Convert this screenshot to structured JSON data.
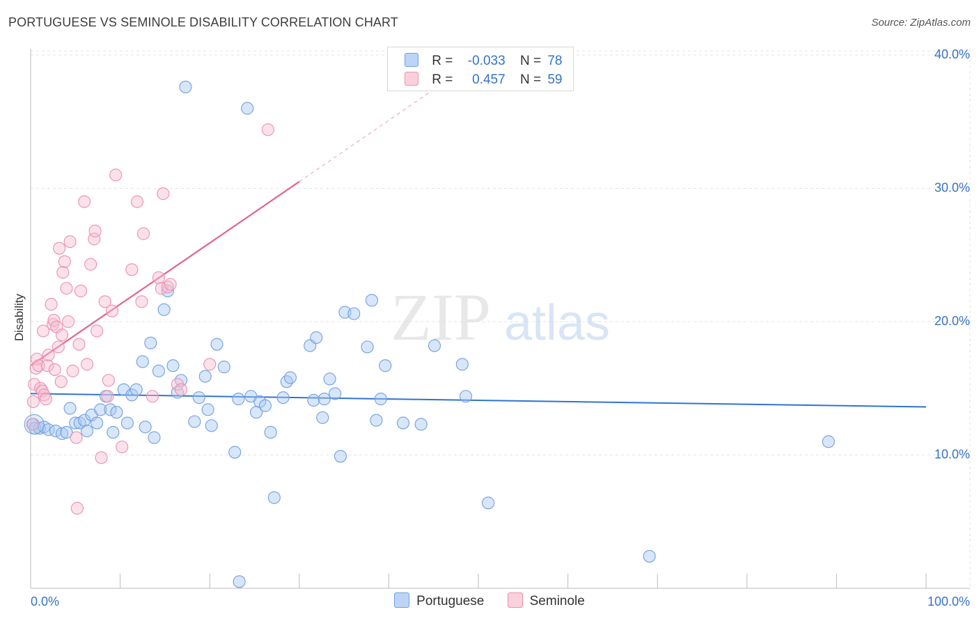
{
  "title": "PORTUGUESE VS SEMINOLE DISABILITY CORRELATION CHART",
  "source": "Source: ZipAtlas.com",
  "watermark": {
    "zip": "ZIP",
    "atlas": "atlas"
  },
  "colors": {
    "portuguese_fill": "#a9c8f2",
    "portuguese_stroke": "#6f9fe0",
    "portuguese_line": "#2f73d0",
    "seminole_fill": "#f7bfd0",
    "seminole_stroke": "#ec8fae",
    "seminole_line": "#e2628e",
    "axis_label": "#3572c9",
    "grid": "#e3e3e3"
  },
  "legend": {
    "rows": [
      {
        "series": "Portuguese",
        "r_label": "R =",
        "r_value": "-0.033",
        "n_label": "N =",
        "n_value": "78"
      },
      {
        "series": "Seminole",
        "r_label": "R =",
        "r_value": "0.457",
        "n_label": "N =",
        "n_value": "59"
      }
    ]
  },
  "chart_data": {
    "type": "scatter",
    "title": "PORTUGUESE VS SEMINOLE DISABILITY CORRELATION CHART",
    "xlabel": "",
    "ylabel": "Disability",
    "xlim": [
      0,
      100
    ],
    "ylim": [
      0,
      42
    ],
    "x_tick_labels": [
      "0.0%",
      "100.0%"
    ],
    "y_ticks": [
      10,
      20,
      30,
      40
    ],
    "y_tick_labels": [
      "10.0%",
      "20.0%",
      "30.0%",
      "40.0%"
    ],
    "grid": true,
    "legend_position": "top-center",
    "series": [
      {
        "name": "Portuguese",
        "r": -0.033,
        "n": 78,
        "trend": {
          "x": [
            0,
            100
          ],
          "y": [
            14.6,
            13.6
          ]
        },
        "points": [
          [
            0.3,
            12.3
          ],
          [
            0.5,
            12.0
          ],
          [
            1.0,
            12.0
          ],
          [
            1.5,
            12.1
          ],
          [
            2.0,
            11.9
          ],
          [
            2.8,
            11.8
          ],
          [
            3.5,
            11.6
          ],
          [
            4.0,
            11.7
          ],
          [
            4.4,
            13.5
          ],
          [
            5.0,
            12.4
          ],
          [
            5.5,
            12.4
          ],
          [
            6.0,
            12.6
          ],
          [
            6.3,
            11.8
          ],
          [
            6.8,
            13.0
          ],
          [
            7.4,
            12.4
          ],
          [
            7.8,
            13.4
          ],
          [
            8.4,
            14.4
          ],
          [
            8.9,
            13.4
          ],
          [
            9.2,
            11.7
          ],
          [
            9.6,
            13.2
          ],
          [
            10.4,
            14.9
          ],
          [
            10.8,
            12.4
          ],
          [
            11.3,
            14.5
          ],
          [
            11.8,
            14.9
          ],
          [
            12.5,
            17.0
          ],
          [
            12.8,
            12.1
          ],
          [
            13.4,
            18.4
          ],
          [
            13.8,
            11.3
          ],
          [
            14.3,
            16.3
          ],
          [
            14.9,
            20.9
          ],
          [
            15.3,
            22.3
          ],
          [
            15.9,
            16.7
          ],
          [
            16.4,
            14.7
          ],
          [
            16.8,
            15.6
          ],
          [
            17.3,
            37.6
          ],
          [
            18.3,
            12.5
          ],
          [
            18.8,
            14.3
          ],
          [
            19.5,
            15.9
          ],
          [
            19.8,
            13.4
          ],
          [
            20.2,
            12.2
          ],
          [
            20.8,
            18.3
          ],
          [
            21.6,
            16.6
          ],
          [
            22.8,
            10.2
          ],
          [
            23.2,
            14.2
          ],
          [
            23.3,
            0.5
          ],
          [
            24.2,
            36.0
          ],
          [
            24.6,
            14.4
          ],
          [
            25.2,
            13.2
          ],
          [
            25.6,
            14.0
          ],
          [
            26.2,
            13.7
          ],
          [
            26.8,
            11.7
          ],
          [
            27.2,
            6.8
          ],
          [
            28.2,
            14.3
          ],
          [
            28.6,
            15.5
          ],
          [
            29.0,
            15.8
          ],
          [
            31.2,
            18.2
          ],
          [
            31.6,
            14.1
          ],
          [
            31.9,
            18.8
          ],
          [
            32.6,
            12.8
          ],
          [
            32.8,
            14.2
          ],
          [
            33.4,
            15.7
          ],
          [
            34.0,
            14.6
          ],
          [
            34.6,
            9.9
          ],
          [
            35.1,
            20.7
          ],
          [
            36.1,
            20.6
          ],
          [
            37.6,
            18.1
          ],
          [
            38.1,
            21.6
          ],
          [
            38.6,
            12.6
          ],
          [
            39.1,
            14.2
          ],
          [
            39.6,
            16.7
          ],
          [
            41.6,
            12.4
          ],
          [
            43.6,
            12.3
          ],
          [
            45.1,
            18.2
          ],
          [
            48.2,
            16.8
          ],
          [
            48.6,
            14.4
          ],
          [
            51.1,
            6.4
          ],
          [
            69.1,
            2.4
          ],
          [
            89.1,
            11.0
          ]
        ]
      },
      {
        "name": "Seminole",
        "r": 0.457,
        "n": 59,
        "trend": {
          "x": [
            0,
            30
          ],
          "y": [
            16.7,
            30.5
          ]
        },
        "trend_extension": {
          "x": [
            30,
            45
          ],
          "y": [
            30.5,
            37.4
          ]
        },
        "points": [
          [
            0.2,
            12.3
          ],
          [
            0.3,
            14.0
          ],
          [
            0.4,
            15.3
          ],
          [
            0.6,
            16.5
          ],
          [
            0.7,
            17.2
          ],
          [
            0.9,
            16.7
          ],
          [
            1.1,
            15.0
          ],
          [
            1.3,
            14.8
          ],
          [
            1.4,
            19.3
          ],
          [
            1.5,
            14.5
          ],
          [
            1.7,
            14.2
          ],
          [
            1.9,
            16.7
          ],
          [
            2.0,
            17.5
          ],
          [
            2.3,
            21.3
          ],
          [
            2.5,
            19.8
          ],
          [
            2.6,
            20.1
          ],
          [
            2.7,
            16.4
          ],
          [
            2.9,
            19.6
          ],
          [
            3.1,
            18.1
          ],
          [
            3.2,
            25.5
          ],
          [
            3.4,
            15.5
          ],
          [
            3.5,
            19.0
          ],
          [
            3.6,
            23.7
          ],
          [
            3.8,
            24.5
          ],
          [
            4.0,
            22.5
          ],
          [
            4.2,
            20.0
          ],
          [
            4.4,
            26.0
          ],
          [
            4.7,
            16.3
          ],
          [
            5.1,
            11.3
          ],
          [
            5.2,
            6.0
          ],
          [
            5.4,
            18.3
          ],
          [
            5.6,
            22.3
          ],
          [
            6.0,
            29.0
          ],
          [
            6.3,
            16.8
          ],
          [
            6.7,
            24.3
          ],
          [
            7.1,
            26.2
          ],
          [
            7.2,
            26.8
          ],
          [
            7.4,
            19.3
          ],
          [
            7.9,
            9.8
          ],
          [
            8.3,
            21.5
          ],
          [
            8.6,
            14.4
          ],
          [
            8.7,
            15.6
          ],
          [
            9.1,
            20.8
          ],
          [
            9.5,
            31.0
          ],
          [
            10.2,
            10.6
          ],
          [
            11.3,
            23.9
          ],
          [
            11.9,
            29.0
          ],
          [
            12.4,
            21.5
          ],
          [
            12.6,
            26.6
          ],
          [
            13.6,
            14.4
          ],
          [
            14.3,
            23.3
          ],
          [
            14.6,
            22.5
          ],
          [
            14.8,
            29.6
          ],
          [
            15.3,
            22.6
          ],
          [
            15.6,
            22.8
          ],
          [
            16.4,
            15.3
          ],
          [
            16.8,
            14.9
          ],
          [
            20.0,
            16.8
          ],
          [
            26.5,
            34.4
          ]
        ]
      }
    ]
  }
}
